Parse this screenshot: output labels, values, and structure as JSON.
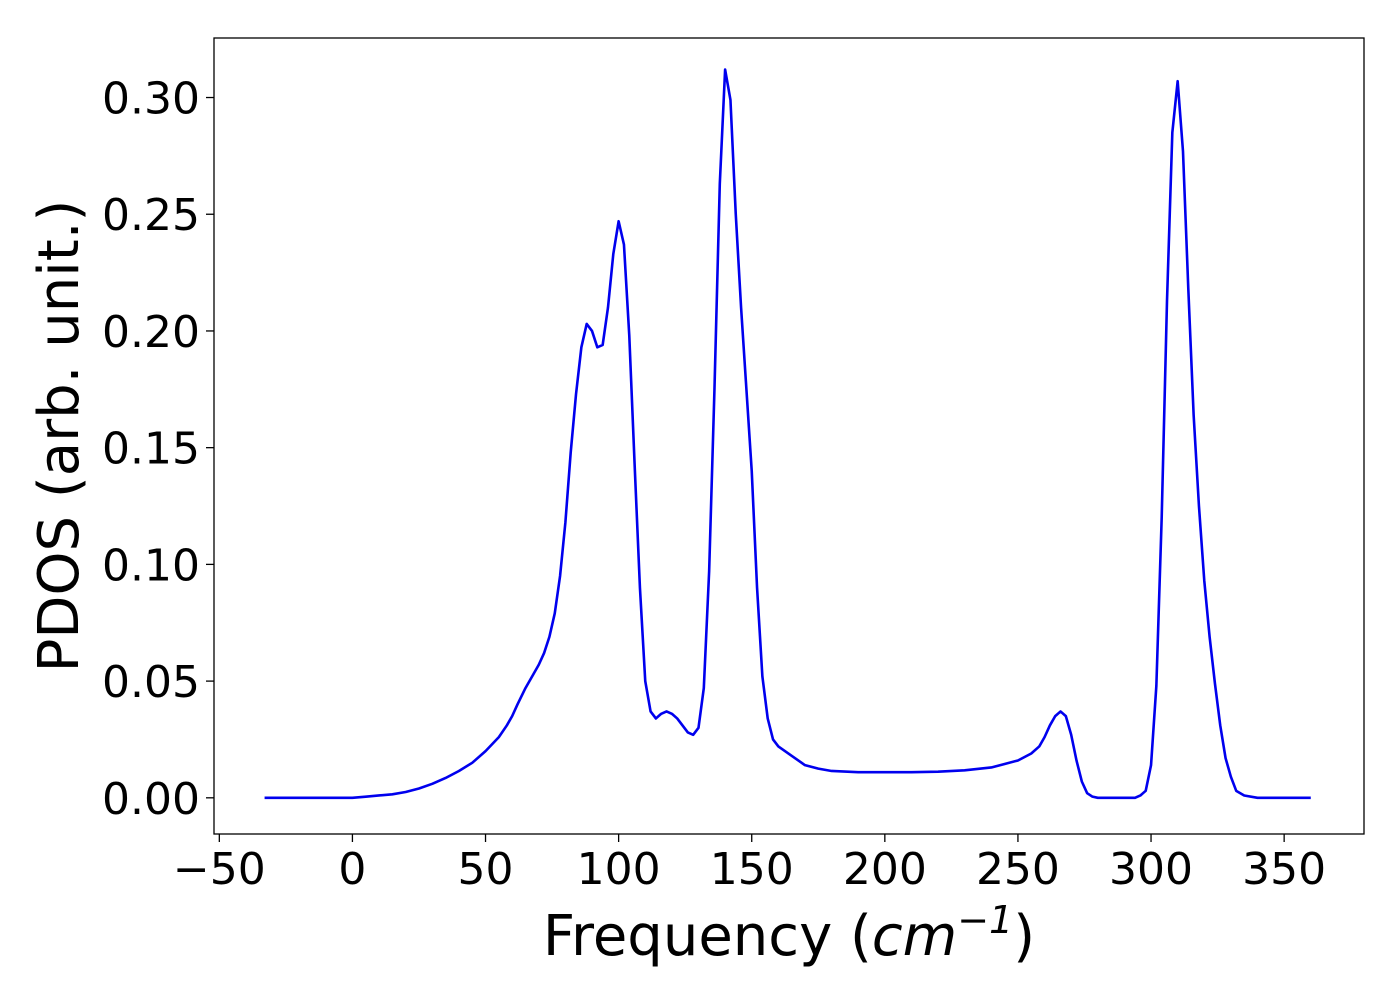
{
  "chart_data": {
    "type": "line",
    "xlabel_prefix": "Frequency (",
    "xlabel_unit": "cm",
    "xlabel_exponent": "−1",
    "xlabel_suffix": ")",
    "ylabel": "PDOS (arb. unit.)",
    "xlim": [
      -52,
      380
    ],
    "ylim": [
      -0.0155,
      0.3255
    ],
    "xticks": [
      -50,
      0,
      50,
      100,
      150,
      200,
      250,
      300,
      350
    ],
    "xtick_labels": [
      "−50",
      "0",
      "50",
      "100",
      "150",
      "200",
      "250",
      "300",
      "350"
    ],
    "yticks": [
      0.0,
      0.05,
      0.1,
      0.15,
      0.2,
      0.25,
      0.3
    ],
    "ytick_labels": [
      "0.00",
      "0.05",
      "0.10",
      "0.15",
      "0.20",
      "0.25",
      "0.30"
    ],
    "grid": false,
    "line_color": "#0000ee",
    "series": [
      {
        "x": [
          -33,
          -20,
          -10,
          0,
          5,
          10,
          15,
          20,
          25,
          30,
          35,
          40,
          45,
          50,
          55,
          58,
          60,
          62,
          65,
          68,
          70,
          72,
          74,
          76,
          78,
          80,
          82,
          84,
          86,
          88,
          90,
          92,
          94,
          96,
          98,
          100,
          102,
          104,
          106,
          108,
          110,
          112,
          114,
          116,
          118,
          120,
          122,
          124,
          126,
          128,
          130,
          132,
          134,
          136,
          138,
          140,
          142,
          144,
          146,
          148,
          150,
          152,
          154,
          156,
          158,
          160,
          165,
          170,
          175,
          180,
          190,
          200,
          210,
          220,
          230,
          240,
          245,
          250,
          255,
          258,
          260,
          262,
          264,
          266,
          268,
          270,
          272,
          274,
          276,
          278,
          280,
          285,
          290,
          294,
          296,
          298,
          300,
          302,
          304,
          306,
          308,
          310,
          312,
          314,
          316,
          318,
          320,
          322,
          324,
          326,
          328,
          330,
          332,
          335,
          340,
          350,
          360
        ],
        "y": [
          0.0,
          0.0,
          0.0,
          0.0,
          0.0005,
          0.001,
          0.0015,
          0.0025,
          0.004,
          0.006,
          0.0085,
          0.0115,
          0.015,
          0.02,
          0.026,
          0.031,
          0.035,
          0.04,
          0.047,
          0.053,
          0.057,
          0.062,
          0.069,
          0.079,
          0.095,
          0.118,
          0.148,
          0.173,
          0.193,
          0.203,
          0.2,
          0.193,
          0.194,
          0.21,
          0.233,
          0.247,
          0.237,
          0.198,
          0.143,
          0.09,
          0.05,
          0.037,
          0.034,
          0.036,
          0.037,
          0.036,
          0.034,
          0.031,
          0.028,
          0.027,
          0.03,
          0.047,
          0.097,
          0.175,
          0.263,
          0.312,
          0.299,
          0.25,
          0.21,
          0.175,
          0.14,
          0.09,
          0.052,
          0.034,
          0.025,
          0.022,
          0.018,
          0.014,
          0.0125,
          0.0115,
          0.011,
          0.011,
          0.011,
          0.0112,
          0.0118,
          0.013,
          0.0145,
          0.016,
          0.019,
          0.022,
          0.026,
          0.031,
          0.035,
          0.037,
          0.035,
          0.027,
          0.016,
          0.007,
          0.002,
          0.0005,
          0.0,
          0.0,
          0.0,
          0.0,
          0.001,
          0.003,
          0.014,
          0.048,
          0.12,
          0.213,
          0.285,
          0.307,
          0.277,
          0.218,
          0.164,
          0.125,
          0.093,
          0.069,
          0.049,
          0.031,
          0.017,
          0.009,
          0.003,
          0.001,
          0.0,
          0.0,
          0.0
        ]
      }
    ]
  }
}
